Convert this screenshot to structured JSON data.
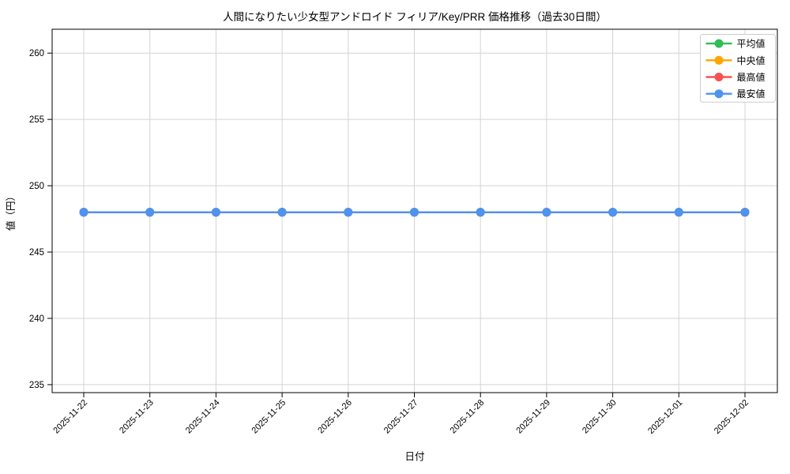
{
  "chart_data": {
    "type": "line",
    "title": "人間になりたい少女型アンドロイド フィリア/Key/PRR 価格推移（過去30日間）",
    "xlabel": "日付",
    "ylabel": "値（円）",
    "categories": [
      "2025-11-22",
      "2025-11-23",
      "2025-11-24",
      "2025-11-25",
      "2025-11-26",
      "2025-11-27",
      "2025-11-28",
      "2025-11-29",
      "2025-11-30",
      "2025-12-01",
      "2025-12-02"
    ],
    "series": [
      {
        "name": "平均値",
        "color": "#2ebd59",
        "values": [
          248,
          248,
          248,
          248,
          248,
          248,
          248,
          248,
          248,
          248,
          248
        ]
      },
      {
        "name": "中央値",
        "color": "#ffa502",
        "values": [
          248,
          248,
          248,
          248,
          248,
          248,
          248,
          248,
          248,
          248,
          248
        ]
      },
      {
        "name": "最高値",
        "color": "#f85050",
        "values": [
          248,
          248,
          248,
          248,
          248,
          248,
          248,
          248,
          248,
          248,
          248
        ]
      },
      {
        "name": "最安値",
        "color": "#4d93f0",
        "values": [
          248,
          248,
          248,
          248,
          248,
          248,
          248,
          248,
          248,
          248,
          248
        ]
      }
    ],
    "ylim": [
      234.4,
      261.8
    ],
    "yticks": [
      235,
      240,
      245,
      250,
      255,
      260
    ],
    "grid": true,
    "legend_position": "upper right",
    "x_tick_rotation": 45
  },
  "colors": {
    "background": "#ffffff",
    "grid": "#d4d4d4",
    "spine": "#000000",
    "tick_text": "#000000",
    "legend_border": "#cccccc",
    "legend_background": "#ffffff"
  }
}
